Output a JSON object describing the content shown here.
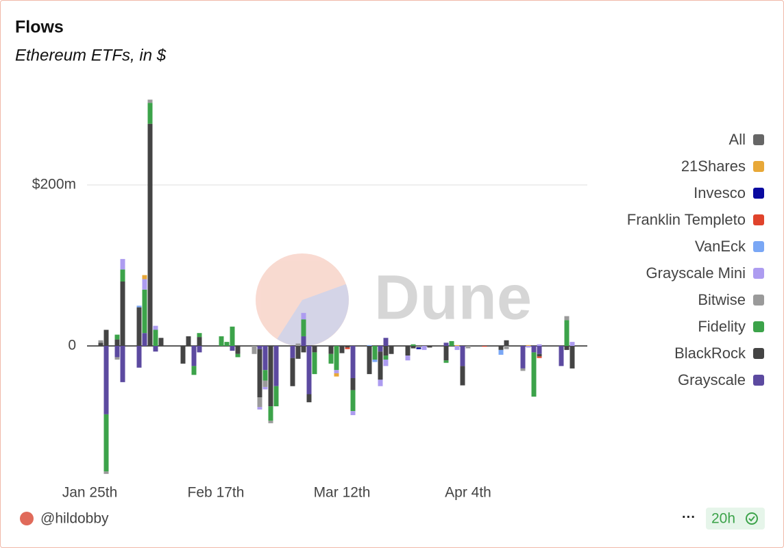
{
  "chart_data": {
    "type": "bar",
    "stacked": true,
    "title": "Flows",
    "subtitle": "Ethereum ETFs, in $",
    "categories": [
      "Jan 25th",
      null,
      null,
      null,
      null,
      null,
      null,
      null,
      null,
      null,
      null,
      null,
      null,
      null,
      null,
      null,
      null,
      null,
      null,
      null,
      null,
      null,
      null,
      "Feb 17th",
      null,
      null,
      null,
      null,
      null,
      null,
      null,
      null,
      null,
      null,
      null,
      null,
      null,
      null,
      null,
      null,
      null,
      null,
      null,
      null,
      null,
      null,
      "Mar 12th",
      null,
      null,
      null,
      null,
      null,
      null,
      null,
      null,
      null,
      null,
      null,
      null,
      null,
      null,
      null,
      null,
      null,
      null,
      null,
      null,
      null,
      null,
      "Apr 4th",
      null,
      null,
      null,
      null,
      null,
      null,
      null,
      null,
      null,
      null,
      null,
      null,
      null,
      null,
      null,
      null,
      null,
      null,
      null,
      null,
      null
    ],
    "ylim": [
      -170000000,
      320000000
    ],
    "yticks": [
      0,
      {
        "value": 200000000,
        "label": "$200m"
      }
    ],
    "grid": true,
    "series": [
      {
        "name": "All",
        "color": "#666666",
        "values": [
          null,
          null,
          null,
          null,
          null,
          null,
          null,
          null,
          null,
          null,
          null,
          null,
          null,
          null,
          null,
          null,
          null,
          null,
          null,
          null,
          null,
          null,
          null,
          null,
          null,
          null,
          null,
          null,
          null,
          null,
          null,
          null,
          null,
          null,
          null,
          null,
          null,
          null,
          null,
          null,
          null,
          null,
          null,
          null,
          null,
          null,
          null,
          null,
          null,
          null,
          null,
          null,
          null,
          null,
          null,
          null,
          null,
          null,
          null,
          null,
          null,
          null,
          null,
          null,
          null,
          null,
          null,
          null,
          null,
          null,
          null,
          null,
          null,
          null,
          null,
          null,
          null,
          null,
          null,
          null,
          null,
          null,
          null,
          null,
          null,
          null,
          null,
          null,
          null,
          null,
          null
        ]
      },
      {
        "name": "21Shares",
        "color": "#e8a838",
        "values": [
          null,
          null,
          0,
          0,
          0,
          0,
          0,
          null,
          null,
          0,
          5000000,
          0,
          0,
          0,
          null,
          null,
          0,
          0,
          0,
          0,
          0,
          null,
          null,
          null,
          0,
          0,
          0,
          0,
          null,
          null,
          0,
          0,
          0,
          0,
          0,
          null,
          null,
          0,
          0,
          0,
          0,
          0,
          null,
          null,
          0,
          -4000000,
          0,
          0,
          0,
          null,
          null,
          0,
          0,
          0,
          0,
          0,
          null,
          null,
          0,
          0,
          0,
          0,
          0,
          null,
          null,
          0,
          0,
          1000000,
          0,
          0,
          null,
          null,
          0,
          0,
          0,
          0,
          0,
          null,
          null,
          0,
          1000000,
          0,
          0,
          null,
          null,
          null,
          0,
          0,
          0,
          0,
          0
        ]
      },
      {
        "name": "Invesco",
        "color": "#0a0aa0",
        "values": [
          null,
          null,
          0,
          0,
          0,
          0,
          0,
          null,
          null,
          0,
          0,
          0,
          0,
          0,
          null,
          null,
          0,
          0,
          0,
          0,
          0,
          null,
          null,
          null,
          0,
          0,
          0,
          0,
          null,
          null,
          0,
          0,
          0,
          0,
          0,
          null,
          null,
          0,
          0,
          0,
          0,
          0,
          null,
          null,
          0,
          0,
          0,
          0,
          0,
          null,
          null,
          0,
          0,
          0,
          0,
          0,
          null,
          null,
          0,
          0,
          -2000000,
          0,
          0,
          null,
          null,
          0,
          0,
          0,
          0,
          0,
          null,
          null,
          0,
          0,
          0,
          0,
          0,
          null,
          null,
          0,
          0,
          0,
          0,
          null,
          null,
          null,
          0,
          0,
          0,
          0,
          0
        ]
      },
      {
        "name": "Franklin Templeto",
        "color": "#e0432c",
        "values": [
          null,
          null,
          0,
          0,
          0,
          0,
          0,
          null,
          null,
          0,
          0,
          0,
          0,
          0,
          null,
          null,
          0,
          0,
          0,
          0,
          0,
          null,
          null,
          null,
          0,
          0,
          0,
          0,
          null,
          null,
          0,
          0,
          0,
          0,
          0,
          null,
          null,
          0,
          0,
          0,
          0,
          0,
          null,
          null,
          0,
          0,
          0,
          -2000000,
          0,
          null,
          null,
          0,
          0,
          0,
          0,
          0,
          null,
          null,
          0,
          0,
          0,
          0,
          0,
          null,
          null,
          0,
          0,
          0,
          0,
          0,
          null,
          null,
          -1000000,
          0,
          0,
          0,
          0,
          null,
          null,
          0,
          0,
          0,
          -2000000,
          null,
          null,
          null,
          0,
          0,
          0,
          0,
          0
        ]
      },
      {
        "name": "VanEck",
        "color": "#7aa7f5",
        "values": [
          null,
          null,
          0,
          0,
          0,
          0,
          0,
          null,
          null,
          2000000,
          0,
          0,
          0,
          0,
          null,
          null,
          0,
          0,
          0,
          0,
          0,
          null,
          null,
          null,
          0,
          0,
          0,
          0,
          null,
          null,
          0,
          0,
          0,
          0,
          0,
          null,
          null,
          0,
          0,
          0,
          0,
          0,
          null,
          null,
          0,
          0,
          0,
          0,
          0,
          null,
          null,
          1000000,
          -3000000,
          0,
          0,
          0,
          null,
          null,
          0,
          0,
          0,
          0,
          0,
          null,
          null,
          0,
          0,
          0,
          0,
          0,
          null,
          null,
          0,
          0,
          0,
          -6000000,
          0,
          null,
          null,
          0,
          0,
          0,
          0,
          null,
          null,
          null,
          0,
          0,
          0,
          0,
          0
        ]
      },
      {
        "name": "Grayscale Mini",
        "color": "#ad9cf0",
        "values": [
          null,
          null,
          0,
          0,
          0,
          0,
          13000000,
          null,
          null,
          0,
          13000000,
          0,
          5000000,
          0,
          null,
          null,
          0,
          0,
          0,
          0,
          0,
          null,
          null,
          null,
          0,
          0,
          0,
          0,
          null,
          null,
          0,
          -3000000,
          -3000000,
          0,
          0,
          null,
          null,
          0,
          0,
          8000000,
          0,
          0,
          null,
          null,
          0,
          -4000000,
          0,
          0,
          -5000000,
          null,
          null,
          0,
          0,
          -8000000,
          -8000000,
          0,
          null,
          null,
          -6000000,
          0,
          0,
          -5000000,
          0,
          null,
          null,
          0,
          0,
          -5000000,
          0,
          0,
          null,
          null,
          0,
          0,
          0,
          0,
          0,
          null,
          null,
          0,
          -2000000,
          0,
          2000000,
          null,
          null,
          null,
          0,
          0,
          5000000,
          0,
          0
        ]
      },
      {
        "name": "Bitwise",
        "color": "#9a9a9a",
        "values": [
          null,
          null,
          3000000,
          -3000000,
          0,
          -3000000,
          0,
          null,
          null,
          0,
          0,
          4000000,
          0,
          0,
          null,
          null,
          0,
          0,
          0,
          0,
          0,
          null,
          null,
          null,
          0,
          0,
          0,
          0,
          null,
          null,
          -10000000,
          -12000000,
          -8000000,
          -3000000,
          0,
          null,
          null,
          0,
          3000000,
          0,
          0,
          0,
          null,
          null,
          0,
          0,
          0,
          0,
          0,
          null,
          null,
          0,
          0,
          0,
          0,
          0,
          null,
          null,
          0,
          0,
          -2000000,
          0,
          0,
          null,
          null,
          0,
          0,
          0,
          0,
          -3000000,
          null,
          null,
          0,
          0,
          0,
          0,
          -4000000,
          null,
          null,
          -3000000,
          0,
          0,
          0,
          null,
          null,
          null,
          0,
          5000000,
          0,
          0,
          0
        ]
      },
      {
        "name": "Fidelity",
        "color": "#3ca34a",
        "values": [
          null,
          null,
          0,
          -71000000,
          0,
          6000000,
          15000000,
          null,
          null,
          0,
          54000000,
          26000000,
          20000000,
          0,
          null,
          null,
          0,
          0,
          0,
          -11000000,
          5000000,
          null,
          null,
          null,
          12000000,
          5000000,
          24000000,
          -4000000,
          null,
          null,
          0,
          0,
          -13000000,
          -18000000,
          -25000000,
          null,
          null,
          0,
          0,
          21000000,
          0,
          -27000000,
          null,
          null,
          -12000000,
          -30000000,
          0,
          0,
          -26000000,
          null,
          null,
          0,
          -17000000,
          0,
          -5000000,
          0,
          null,
          null,
          0,
          2000000,
          0,
          0,
          0,
          null,
          null,
          -3000000,
          6000000,
          0,
          0,
          0,
          null,
          null,
          0,
          0,
          0,
          0,
          0,
          null,
          null,
          0,
          0,
          -55000000,
          0,
          null,
          null,
          null,
          0,
          32000000,
          0,
          0,
          0
        ]
      },
      {
        "name": "BlackRock",
        "color": "#444444",
        "values": [
          null,
          null,
          4000000,
          20000000,
          0,
          8000000,
          80000000,
          null,
          null,
          48000000,
          0,
          276000000,
          0,
          10000000,
          null,
          null,
          0,
          -22000000,
          12000000,
          0,
          11000000,
          null,
          null,
          null,
          0,
          0,
          0,
          -10000000,
          null,
          null,
          0,
          -60000000,
          0,
          -75000000,
          0,
          null,
          null,
          -35000000,
          -16000000,
          -8000000,
          -10000000,
          -8000000,
          null,
          null,
          -10000000,
          0,
          -9000000,
          -2000000,
          -15000000,
          null,
          null,
          -35000000,
          0,
          -35000000,
          -12000000,
          -10000000,
          null,
          null,
          -12000000,
          -3000000,
          0,
          0,
          -2000000,
          null,
          null,
          -18000000,
          0,
          0,
          -24000000,
          0,
          null,
          null,
          0,
          0,
          0,
          -5000000,
          7000000,
          null,
          null,
          0,
          0,
          0,
          -3000000,
          null,
          null,
          null,
          0,
          -5000000,
          -28000000,
          0,
          0
        ]
      },
      {
        "name": "Grayscale",
        "color": "#5c4aa0",
        "values": [
          null,
          null,
          0,
          -85000000,
          0,
          -14000000,
          -45000000,
          null,
          null,
          -27000000,
          16000000,
          0,
          -7000000,
          0,
          null,
          null,
          0,
          0,
          0,
          -25000000,
          -8000000,
          null,
          null,
          null,
          0,
          0,
          -6000000,
          0,
          null,
          null,
          0,
          -4000000,
          -30000000,
          0,
          -50000000,
          null,
          null,
          -15000000,
          0,
          12000000,
          -60000000,
          0,
          null,
          null,
          0,
          0,
          0,
          0,
          -40000000,
          null,
          null,
          0,
          0,
          -7000000,
          10000000,
          0,
          null,
          null,
          0,
          0,
          0,
          0,
          0,
          null,
          null,
          4000000,
          0,
          0,
          -25000000,
          0,
          null,
          null,
          0,
          0,
          0,
          0,
          0,
          null,
          null,
          -28000000,
          0,
          -8000000,
          -10000000,
          null,
          null,
          null,
          -25000000,
          0,
          0,
          0,
          0
        ]
      }
    ]
  },
  "watermark": "Dune",
  "footer": {
    "user": "@hildobby",
    "freshness": "20h"
  }
}
